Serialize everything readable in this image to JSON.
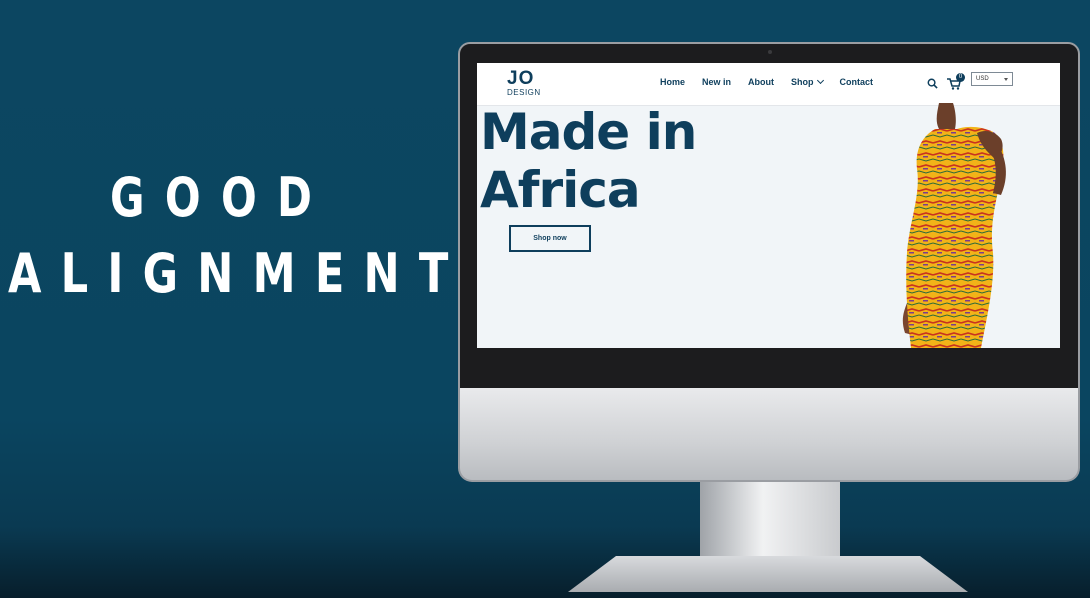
{
  "headline": {
    "line1": "GOOD",
    "line2": "ALIGNMENT"
  },
  "site": {
    "logo_main": "JO",
    "logo_sub": "DESIGN",
    "nav": [
      {
        "label": "Home"
      },
      {
        "label": "New in"
      },
      {
        "label": "About"
      },
      {
        "label": "Shop",
        "dropdown": true
      },
      {
        "label": "Contact"
      }
    ],
    "cart_count": "0",
    "currency": "USD",
    "hero_line1": "Made in",
    "hero_line2": "Africa",
    "cta_label": "Shop now"
  },
  "colors": {
    "background": "#0c4661",
    "brand": "#0e3e5c",
    "dress": "#f2b318"
  },
  "icons": [
    "search-icon",
    "cart-icon",
    "chevron-down-icon"
  ]
}
